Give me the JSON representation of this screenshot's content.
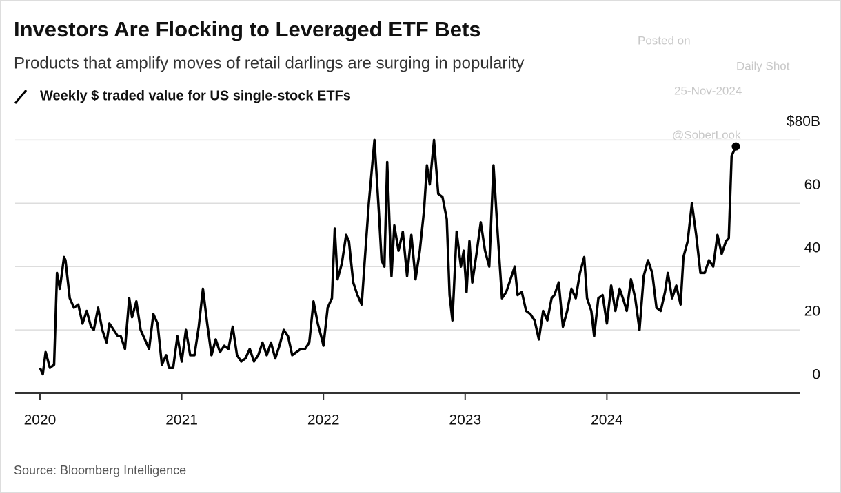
{
  "chart_data": {
    "type": "line",
    "title": "Investors Are Flocking to Leveraged ETF Bets",
    "subtitle": "Products that amplify moves of retail darlings are surging in popularity",
    "source": "Source: Bloomberg Intelligence",
    "watermark": {
      "line1": "Posted on",
      "line2": "Daily Shot",
      "line3": "25-Nov-2024",
      "line4": "@SoberLook"
    },
    "xlim": [
      2019.825,
      2025.36
    ],
    "xticks": [
      2020,
      2021,
      2022,
      2023,
      2024
    ],
    "ylim": [
      0,
      84
    ],
    "yticks": [
      0,
      20,
      40,
      60,
      {
        "value": 80,
        "label": "$80B"
      }
    ],
    "grid": true,
    "end_marker": true,
    "series": [
      {
        "name": "Weekly $ traded value for US single-stock ETFs",
        "color": "#000000",
        "x": [
          2020.0,
          2020.02,
          2020.04,
          2020.07,
          2020.1,
          2020.12,
          2020.14,
          2020.17,
          2020.18,
          2020.21,
          2020.24,
          2020.27,
          2020.3,
          2020.33,
          2020.36,
          2020.38,
          2020.41,
          2020.44,
          2020.47,
          2020.49,
          2020.52,
          2020.55,
          2020.57,
          2020.6,
          2020.63,
          2020.65,
          2020.68,
          2020.71,
          2020.74,
          2020.77,
          2020.8,
          2020.83,
          2020.86,
          2020.89,
          2020.91,
          2020.94,
          2020.97,
          2021.0,
          2021.03,
          2021.06,
          2021.09,
          2021.12,
          2021.15,
          2021.18,
          2021.21,
          2021.24,
          2021.27,
          2021.3,
          2021.33,
          2021.36,
          2021.39,
          2021.42,
          2021.45,
          2021.48,
          2021.51,
          2021.54,
          2021.57,
          2021.6,
          2021.63,
          2021.66,
          2021.69,
          2021.72,
          2021.75,
          2021.78,
          2021.81,
          2021.84,
          2021.87,
          2021.9,
          2021.93,
          2021.96,
          2021.99,
          2022.0,
          2022.03,
          2022.06,
          2022.08,
          2022.1,
          2022.13,
          2022.16,
          2022.18,
          2022.21,
          2022.24,
          2022.27,
          2022.29,
          2022.32,
          2022.36,
          2022.39,
          2022.41,
          2022.43,
          2022.45,
          2022.48,
          2022.5,
          2022.53,
          2022.56,
          2022.59,
          2022.62,
          2022.65,
          2022.68,
          2022.71,
          2022.73,
          2022.75,
          2022.78,
          2022.81,
          2022.84,
          2022.87,
          2022.89,
          2022.91,
          2022.94,
          2022.97,
          2022.99,
          2023.01,
          2023.03,
          2023.05,
          2023.08,
          2023.11,
          2023.14,
          2023.17,
          2023.2,
          2023.23,
          2023.26,
          2023.29,
          2023.32,
          2023.35,
          2023.37,
          2023.4,
          2023.43,
          2023.46,
          2023.49,
          2023.52,
          2023.55,
          2023.58,
          2023.61,
          2023.63,
          2023.66,
          2023.69,
          2023.72,
          2023.75,
          2023.78,
          2023.81,
          2023.84,
          2023.86,
          2023.89,
          2023.91,
          2023.94,
          2023.97,
          2024.0,
          2024.03,
          2024.06,
          2024.09,
          2024.12,
          2024.14,
          2024.17,
          2024.2,
          2024.23,
          2024.26,
          2024.29,
          2024.32,
          2024.35,
          2024.38,
          2024.41,
          2024.43,
          2024.46,
          2024.49,
          2024.52,
          2024.54,
          2024.57,
          2024.6,
          2024.63,
          2024.66,
          2024.69,
          2024.72,
          2024.75,
          2024.78,
          2024.81,
          2024.84,
          2024.86,
          2024.88,
          2024.91
        ],
        "values": [
          8,
          6,
          13,
          8,
          9,
          38,
          33,
          43,
          42,
          30,
          27,
          28,
          22,
          26,
          21,
          20,
          27,
          20,
          16,
          22,
          20,
          18,
          18,
          14,
          30,
          24,
          29,
          20,
          17,
          14,
          25,
          22,
          9,
          12,
          8,
          8,
          18,
          10,
          20,
          12,
          12,
          21,
          33,
          22,
          12,
          17,
          13,
          15,
          14,
          21,
          12,
          10,
          11,
          14,
          10,
          12,
          16,
          12,
          16,
          11,
          15,
          20,
          18,
          12,
          13,
          14,
          14,
          16,
          29,
          22,
          17,
          15,
          27,
          30,
          52,
          36,
          41,
          50,
          48,
          35,
          31,
          28,
          41,
          60,
          80,
          58,
          42,
          40,
          73,
          37,
          53,
          45,
          51,
          37,
          50,
          36,
          45,
          58,
          72,
          66,
          80,
          63,
          62,
          55,
          31,
          23,
          51,
          40,
          45,
          32,
          48,
          35,
          44,
          54,
          45,
          40,
          72,
          50,
          30,
          32,
          36,
          40,
          31,
          32,
          26,
          25,
          23,
          17,
          26,
          23,
          30,
          31,
          35,
          21,
          26,
          33,
          30,
          38,
          43,
          30,
          26,
          18,
          30,
          31,
          22,
          34,
          26,
          33,
          29,
          26,
          36,
          30,
          20,
          37,
          42,
          38,
          27,
          26,
          32,
          38,
          30,
          34,
          28,
          43,
          48,
          60,
          50,
          38,
          38,
          42,
          40,
          50,
          44,
          48,
          49,
          75,
          78
        ]
      }
    ]
  }
}
